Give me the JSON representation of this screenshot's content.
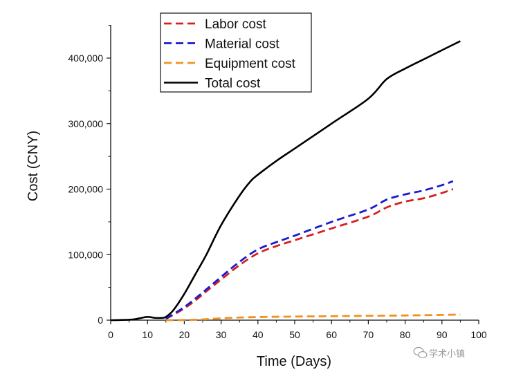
{
  "watermark": {
    "text": "学术小镇",
    "icon": "wechat-icon"
  },
  "chart_data": {
    "type": "line",
    "title": "",
    "xlabel": "Time (Days)",
    "ylabel": "Cost (CNY)",
    "xlim": [
      0,
      100
    ],
    "ylim": [
      0,
      400000
    ],
    "x_ticks": [
      0,
      10,
      20,
      30,
      40,
      50,
      60,
      70,
      80,
      90,
      100
    ],
    "x_tick_labels": [
      "0",
      "10",
      "20",
      "30",
      "40",
      "50",
      "60",
      "70",
      "80",
      "90",
      "100"
    ],
    "y_ticks": [
      0,
      100000,
      200000,
      300000,
      400000
    ],
    "y_tick_labels": [
      "0",
      "100,000",
      "200,000",
      "300,000",
      "400,000"
    ],
    "grid": false,
    "legend_position": "top-left",
    "series": [
      {
        "name": "Labor cost",
        "color": "#d62020",
        "style": "dashed",
        "x": [
          15,
          17,
          20,
          23,
          26,
          30,
          35,
          40,
          45,
          50,
          60,
          70,
          75,
          80,
          85,
          90,
          93
        ],
        "y": [
          2000,
          8000,
          18000,
          30000,
          44000,
          62000,
          84000,
          102000,
          113000,
          122000,
          140000,
          158000,
          172000,
          181000,
          186000,
          194000,
          200000
        ]
      },
      {
        "name": "Material cost",
        "color": "#1a1ad2",
        "style": "dashed",
        "x": [
          15,
          17,
          20,
          23,
          26,
          30,
          35,
          40,
          45,
          50,
          60,
          70,
          75,
          80,
          85,
          90,
          93
        ],
        "y": [
          2000,
          9000,
          20000,
          33000,
          47000,
          66000,
          89000,
          108000,
          119000,
          129000,
          150000,
          169000,
          184000,
          192000,
          198000,
          206000,
          212000
        ]
      },
      {
        "name": "Equipment cost",
        "color": "#f0931e",
        "style": "dashed",
        "x": [
          15,
          20,
          25,
          30,
          35,
          40,
          50,
          60,
          70,
          80,
          90,
          95
        ],
        "y": [
          0,
          200,
          1200,
          2800,
          4000,
          4800,
          5500,
          6000,
          6600,
          7200,
          8000,
          8500
        ]
      },
      {
        "name": "Total cost",
        "color": "#000000",
        "style": "solid",
        "x": [
          0,
          3,
          6,
          8,
          10,
          12,
          14,
          15,
          17,
          20,
          23,
          26,
          30,
          35,
          38,
          40,
          45,
          50,
          60,
          70,
          75,
          80,
          85,
          90,
          95
        ],
        "y": [
          0,
          300,
          1000,
          3000,
          5000,
          3500,
          3500,
          5000,
          15000,
          40000,
          70000,
          100000,
          145000,
          190000,
          212000,
          222000,
          243000,
          262000,
          300000,
          338000,
          368000,
          384000,
          398000,
          412000,
          426000
        ]
      }
    ]
  }
}
